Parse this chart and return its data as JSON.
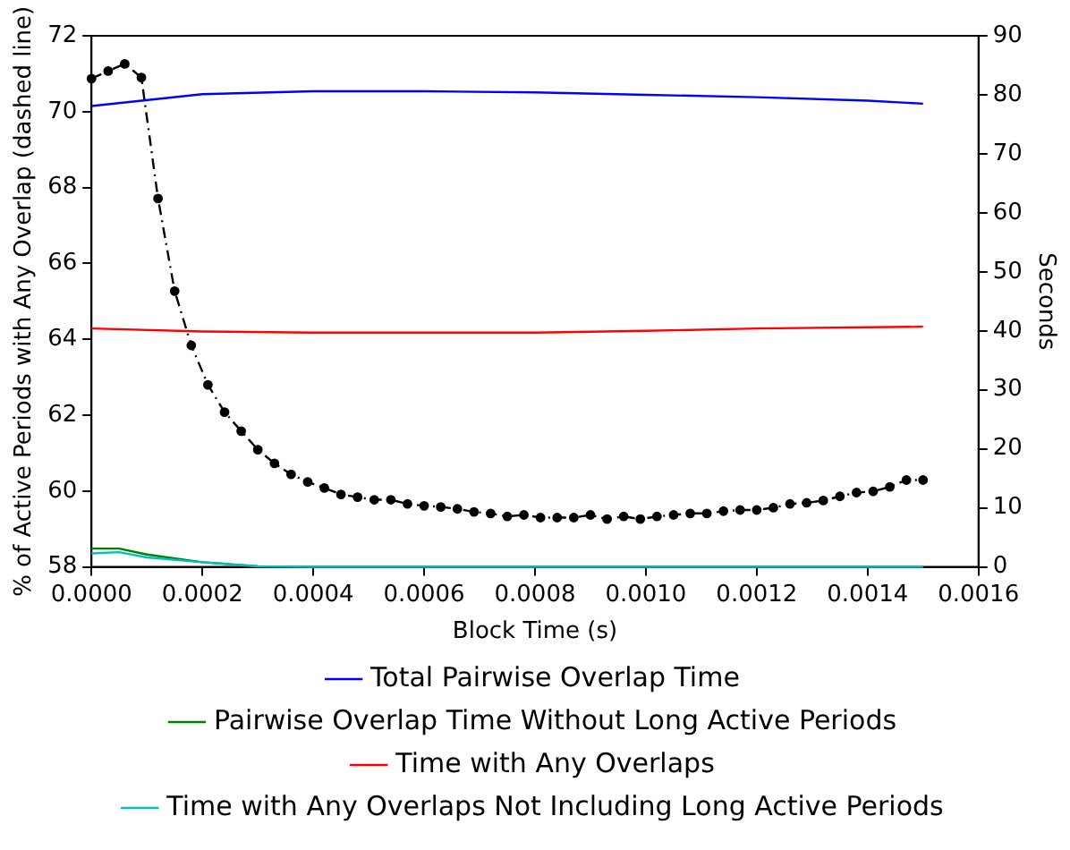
{
  "chart_data": {
    "type": "line",
    "xlabel": "Block Time (s)",
    "ylabel": "% of Active Periods with Any Overlap (dashed line)",
    "y2label": "Seconds",
    "x": [
      0,
      3e-05,
      6e-05,
      9e-05,
      0.00012,
      0.00015,
      0.00018,
      0.00021,
      0.00024,
      0.00027,
      0.0003,
      0.00033,
      0.00036,
      0.00039,
      0.00042,
      0.00045,
      0.00048,
      0.00051,
      0.00054,
      0.00057,
      0.0006,
      0.00063,
      0.00066,
      0.00069,
      0.00072,
      0.00075,
      0.00078,
      0.00081,
      0.00084,
      0.00087,
      0.0009,
      0.00093,
      0.00096,
      0.00099,
      0.00102,
      0.00105,
      0.00108,
      0.00111,
      0.00114,
      0.00117,
      0.0012,
      0.00123,
      0.00126,
      0.00129,
      0.00132,
      0.00135,
      0.00138,
      0.00141,
      0.00144,
      0.00147,
      0.0015
    ],
    "xlim": [
      0,
      0.0016
    ],
    "xticks": [
      {
        "value": 0,
        "label": "0.0000"
      },
      {
        "value": 0.0002,
        "label": "0.0002"
      },
      {
        "value": 0.0004,
        "label": "0.0004"
      },
      {
        "value": 0.0006,
        "label": "0.0006"
      },
      {
        "value": 0.0008,
        "label": "0.0008"
      },
      {
        "value": 0.001,
        "label": "0.0010"
      },
      {
        "value": 0.0012,
        "label": "0.0012"
      },
      {
        "value": 0.0014,
        "label": "0.0014"
      },
      {
        "value": 0.0016,
        "label": "0.0016"
      }
    ],
    "ylim": [
      58,
      72
    ],
    "yticks": [
      58,
      60,
      62,
      64,
      66,
      68,
      70,
      72
    ],
    "y2lim": [
      0,
      90
    ],
    "y2ticks": [
      0,
      10,
      20,
      30,
      40,
      50,
      60,
      70,
      80,
      90
    ],
    "grid": false,
    "legend": "bottom",
    "series": [
      {
        "color": "#000000",
        "marker": "circle",
        "line_style": "dashed",
        "values": [
          70.87,
          71.07,
          71.26,
          70.9,
          67.71,
          65.27,
          63.84,
          62.8,
          62.08,
          61.58,
          61.09,
          60.73,
          60.44,
          60.24,
          60.08,
          59.91,
          59.84,
          59.77,
          59.77,
          59.66,
          59.61,
          59.58,
          59.53,
          59.45,
          59.41,
          59.33,
          59.37,
          59.3,
          59.3,
          59.3,
          59.37,
          59.26,
          59.33,
          59.26,
          59.33,
          59.37,
          59.41,
          59.41,
          59.47,
          59.5,
          59.5,
          59.56,
          59.66,
          59.69,
          59.75,
          59.86,
          59.96,
          59.99,
          60.11,
          60.29,
          60.29
        ]
      },
      {
        "name": "Total Pairwise Overlap Time",
        "color": "#0000ff",
        "axis": "y2",
        "x": [
          0,
          0.0002,
          0.0004,
          0.0006,
          0.0008,
          0.001,
          0.0012,
          0.0014,
          0.0015
        ],
        "values": [
          78.1,
          80.1,
          80.6,
          80.6,
          80.4,
          80.0,
          79.6,
          79.0,
          78.5
        ]
      },
      {
        "name": "Pairwise Overlap Time Without Long Active Periods",
        "color": "#008000",
        "axis": "y2",
        "x": [
          0,
          5e-05,
          0.0001,
          0.0002,
          0.0003
        ],
        "values": [
          3.1,
          3.1,
          2.1,
          0.8,
          0.1
        ]
      },
      {
        "name": "Time with Any Overlaps",
        "color": "#ff0000",
        "axis": "y2",
        "x": [
          0,
          0.0002,
          0.0004,
          0.0008,
          0.001,
          0.0012,
          0.0015
        ],
        "values": [
          40.4,
          39.9,
          39.7,
          39.7,
          40.0,
          40.4,
          40.7
        ]
      },
      {
        "name": "Time with Any Overlaps Not Including Long Active Periods",
        "color": "#00bfbf",
        "axis": "y2",
        "x": [
          0,
          5e-05,
          0.0001,
          0.0002,
          0.0003,
          0.0004,
          0.0015
        ],
        "values": [
          2.3,
          2.5,
          1.6,
          0.8,
          0.1,
          0,
          0
        ]
      }
    ]
  }
}
